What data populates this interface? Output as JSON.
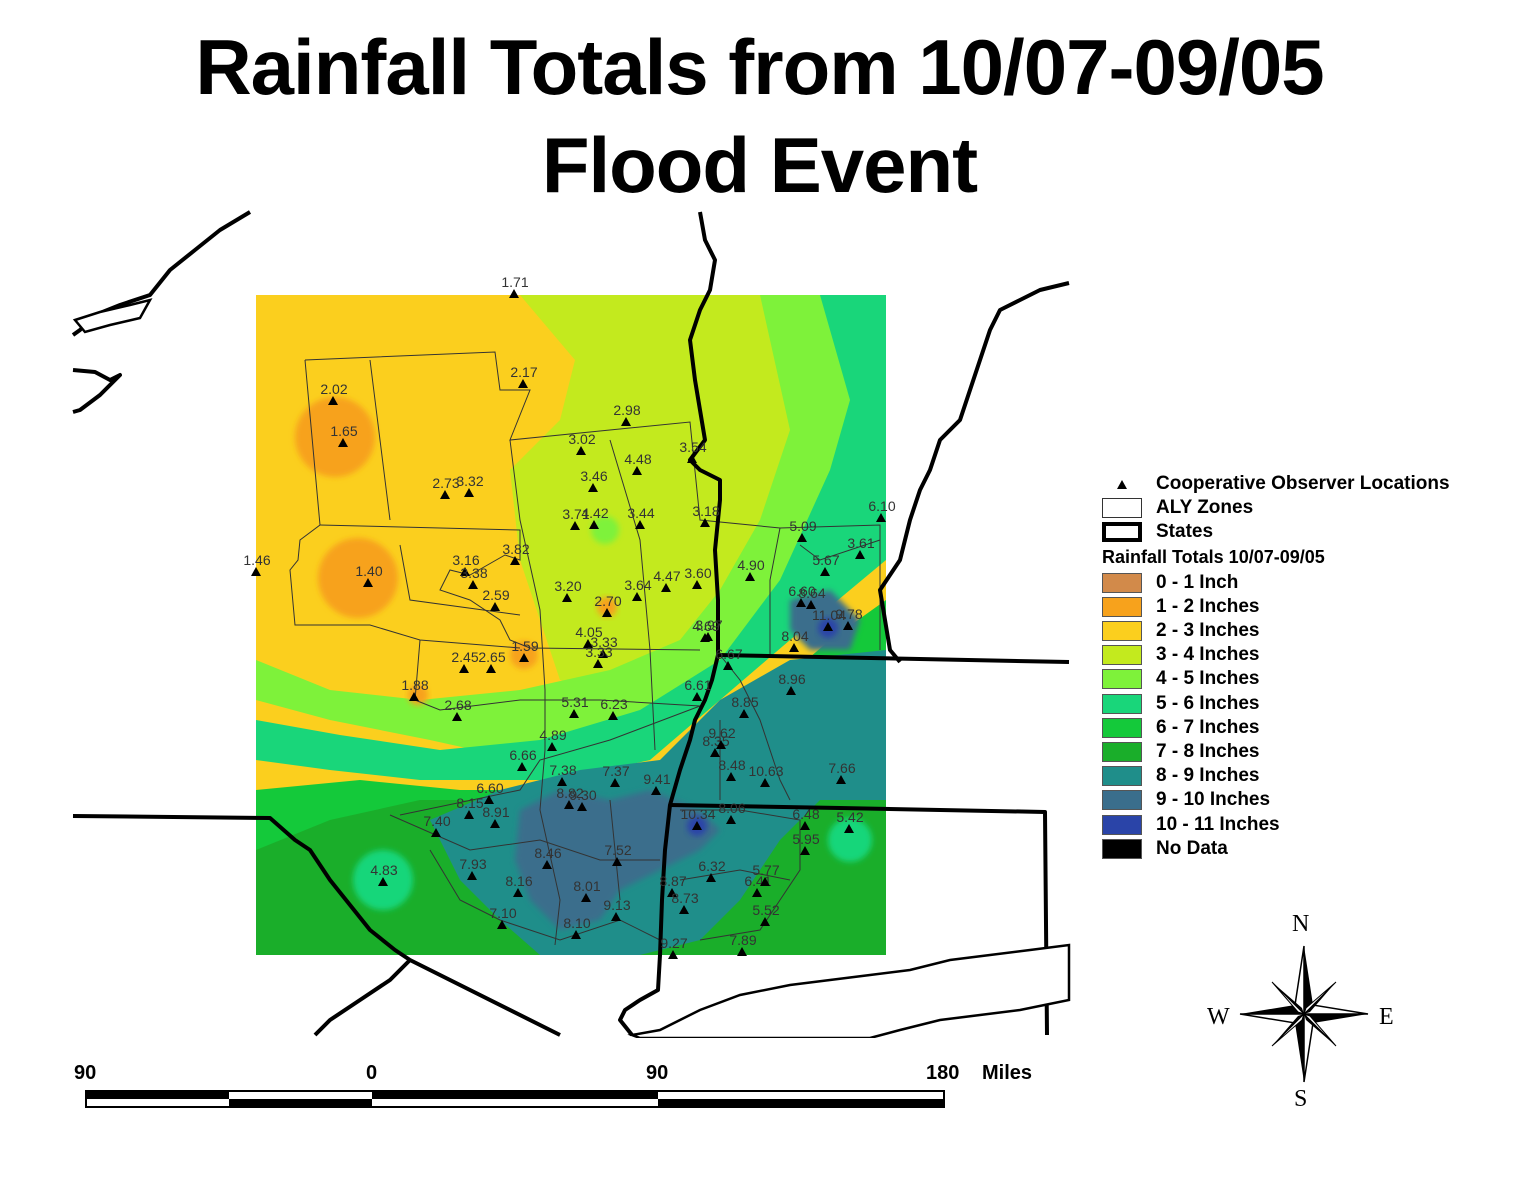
{
  "title": {
    "line1": "Rainfall Totals from 10/07-09/05",
    "line2": "Flood Event"
  },
  "legend": {
    "observer_label": "Cooperative Observer Locations",
    "zones_label": "ALY Zones",
    "states_label": "States",
    "rainfall_heading": "Rainfall Totals 10/07-09/05",
    "classes": [
      {
        "label": "0 - 1 Inch",
        "color": "#d28a4a"
      },
      {
        "label": "1 - 2 Inches",
        "color": "#f7a21c"
      },
      {
        "label": "2 - 3 Inches",
        "color": "#fbcf1e"
      },
      {
        "label": "3 - 4 Inches",
        "color": "#c3ea1e"
      },
      {
        "label": "4 - 5 Inches",
        "color": "#7ef23a"
      },
      {
        "label": "5 - 6 Inches",
        "color": "#19d67a"
      },
      {
        "label": "6 - 7 Inches",
        "color": "#14c93a"
      },
      {
        "label": "7 - 8 Inches",
        "color": "#1aae2a"
      },
      {
        "label": "8 - 9 Inches",
        "color": "#1f8e8a"
      },
      {
        "label": "9 - 10 Inches",
        "color": "#3a6e8c"
      },
      {
        "label": "10 - 11 Inches",
        "color": "#2a44a8"
      },
      {
        "label": "No Data",
        "color": "#000000"
      }
    ]
  },
  "scale": {
    "labels": [
      "90",
      "0",
      "90",
      "180"
    ],
    "units": "Miles"
  },
  "compass": {
    "n": "N",
    "s": "S",
    "e": "E",
    "w": "W"
  },
  "stations": [
    {
      "value": "1.71"
    },
    {
      "value": "2.17"
    },
    {
      "value": "2.02"
    },
    {
      "value": "1.65"
    },
    {
      "value": "2.98"
    },
    {
      "value": "3.02"
    },
    {
      "value": "4.48"
    },
    {
      "value": "3.54"
    },
    {
      "value": "3.46"
    },
    {
      "value": "2.73"
    },
    {
      "value": "3.32"
    },
    {
      "value": "3.71"
    },
    {
      "value": "4.42"
    },
    {
      "value": "3.44"
    },
    {
      "value": "3.18"
    },
    {
      "value": "5.09"
    },
    {
      "value": "6.10"
    },
    {
      "value": "3.61"
    },
    {
      "value": "1.46"
    },
    {
      "value": "1.40"
    },
    {
      "value": "3.16"
    },
    {
      "value": "3.82"
    },
    {
      "value": "3.38"
    },
    {
      "value": "3.20"
    },
    {
      "value": "4.47"
    },
    {
      "value": "3.60"
    },
    {
      "value": "4.90"
    },
    {
      "value": "5.67"
    },
    {
      "value": "2.59"
    },
    {
      "value": "2.70"
    },
    {
      "value": "3.64"
    },
    {
      "value": "3.97"
    },
    {
      "value": "8.64"
    },
    {
      "value": "6.60"
    },
    {
      "value": "9.78"
    },
    {
      "value": "4.05"
    },
    {
      "value": "3.33"
    },
    {
      "value": "4.69"
    },
    {
      "value": "8.04"
    },
    {
      "value": "11.04"
    },
    {
      "value": "1.59"
    },
    {
      "value": "2.45"
    },
    {
      "value": "2.65"
    },
    {
      "value": "3.33"
    },
    {
      "value": "6.67"
    },
    {
      "value": "1.88"
    },
    {
      "value": "6.61"
    },
    {
      "value": "8.96"
    },
    {
      "value": "2.68"
    },
    {
      "value": "5.31"
    },
    {
      "value": "6.23"
    },
    {
      "value": "8.85"
    },
    {
      "value": "4.89"
    },
    {
      "value": "8.35"
    },
    {
      "value": "9.62"
    },
    {
      "value": "6.66"
    },
    {
      "value": "8.48"
    },
    {
      "value": "7.38"
    },
    {
      "value": "7.37"
    },
    {
      "value": "9.41"
    },
    {
      "value": "10.63"
    },
    {
      "value": "7.66"
    },
    {
      "value": "6.60"
    },
    {
      "value": "8.15"
    },
    {
      "value": "8.82"
    },
    {
      "value": "10.34"
    },
    {
      "value": "8.06"
    },
    {
      "value": "6.48"
    },
    {
      "value": "5.42"
    },
    {
      "value": "7.40"
    },
    {
      "value": "8.91"
    },
    {
      "value": "9.30"
    },
    {
      "value": "5.95"
    },
    {
      "value": "7.52"
    },
    {
      "value": "4.83"
    },
    {
      "value": "7.93"
    },
    {
      "value": "8.46"
    },
    {
      "value": "6.32"
    },
    {
      "value": "8.16"
    },
    {
      "value": "8.01"
    },
    {
      "value": "8.87"
    },
    {
      "value": "6.41"
    },
    {
      "value": "5.77"
    },
    {
      "value": "7.10"
    },
    {
      "value": "9.13"
    },
    {
      "value": "8.73"
    },
    {
      "value": "5.52"
    },
    {
      "value": "8.10"
    },
    {
      "value": "9.27"
    },
    {
      "value": "7.89"
    }
  ]
}
